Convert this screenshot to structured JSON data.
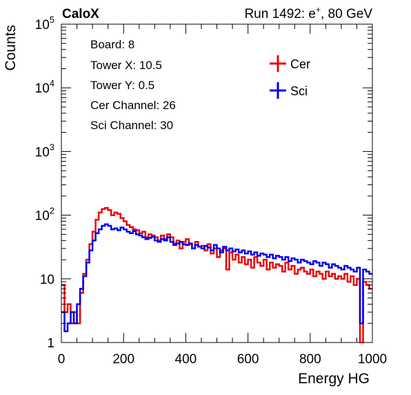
{
  "header": {
    "left_title": "CaloX",
    "right_title_prefix": "Run 1492: e",
    "right_title_sup": "+",
    "right_title_suffix": ", 80 GeV"
  },
  "info_lines": [
    "Board: 8",
    "Tower X: 10.5",
    "Tower Y: 0.5",
    "Cer Channel: 26",
    "Sci Channel: 30"
  ],
  "chart_data": {
    "type": "line",
    "subtype": "step-histogram",
    "xlabel": "Energy HG",
    "ylabel": "Counts",
    "xlim": [
      0,
      1000
    ],
    "ylim": [
      1,
      100000
    ],
    "yscale": "log",
    "x_ticks": [
      0,
      200,
      400,
      600,
      800,
      1000
    ],
    "x_tick_labels": [
      "0",
      "200",
      "400",
      "600",
      "800",
      "1000"
    ],
    "y_ticks": [
      1,
      10,
      100,
      1000,
      10000,
      100000
    ],
    "y_tick_labels": [
      {
        "base": "1",
        "exp": ""
      },
      {
        "base": "10",
        "exp": ""
      },
      {
        "base": "10",
        "exp": "2"
      },
      {
        "base": "10",
        "exp": "3"
      },
      {
        "base": "10",
        "exp": "4"
      },
      {
        "base": "10",
        "exp": "5"
      }
    ],
    "legend_position": "top-right",
    "series": [
      {
        "name": "Cer",
        "color": "#ee0000",
        "x": [
          0,
          10,
          20,
          30,
          40,
          50,
          60,
          70,
          80,
          90,
          100,
          110,
          120,
          130,
          140,
          150,
          160,
          170,
          180,
          190,
          200,
          210,
          220,
          230,
          240,
          250,
          260,
          270,
          280,
          290,
          300,
          310,
          320,
          330,
          340,
          350,
          360,
          370,
          380,
          390,
          400,
          410,
          420,
          430,
          440,
          450,
          460,
          470,
          480,
          490,
          500,
          510,
          520,
          530,
          540,
          550,
          560,
          570,
          580,
          590,
          600,
          610,
          620,
          630,
          640,
          650,
          660,
          670,
          680,
          690,
          700,
          710,
          720,
          730,
          740,
          750,
          760,
          770,
          780,
          790,
          800,
          810,
          820,
          830,
          840,
          850,
          860,
          870,
          880,
          890,
          900,
          910,
          920,
          930,
          940,
          950,
          960,
          970,
          980,
          990
        ],
        "values": [
          8,
          3,
          4,
          2,
          3,
          2,
          6,
          12,
          20,
          35,
          55,
          85,
          110,
          125,
          130,
          120,
          100,
          110,
          105,
          90,
          80,
          70,
          65,
          60,
          58,
          52,
          55,
          45,
          50,
          48,
          45,
          40,
          48,
          42,
          50,
          45,
          36,
          40,
          30,
          38,
          42,
          35,
          30,
          38,
          32,
          33,
          28,
          35,
          25,
          30,
          22,
          28,
          30,
          14,
          26,
          20,
          24,
          18,
          22,
          17,
          20,
          15,
          22,
          18,
          16,
          20,
          14,
          18,
          15,
          17,
          16,
          13,
          18,
          14,
          16,
          12,
          14,
          15,
          13,
          12,
          14,
          11,
          13,
          12,
          10,
          13,
          11,
          12,
          10,
          11,
          10,
          12,
          9,
          11,
          8,
          10,
          1,
          9,
          8,
          7
        ]
      },
      {
        "name": "Sci",
        "color": "#0000ee",
        "x": [
          0,
          10,
          20,
          30,
          40,
          50,
          60,
          70,
          80,
          90,
          100,
          110,
          120,
          130,
          140,
          150,
          160,
          170,
          180,
          190,
          200,
          210,
          220,
          230,
          240,
          250,
          260,
          270,
          280,
          290,
          300,
          310,
          320,
          330,
          340,
          350,
          360,
          370,
          380,
          390,
          400,
          410,
          420,
          430,
          440,
          450,
          460,
          470,
          480,
          490,
          500,
          510,
          520,
          530,
          540,
          550,
          560,
          570,
          580,
          590,
          600,
          610,
          620,
          630,
          640,
          650,
          660,
          670,
          680,
          690,
          700,
          710,
          720,
          730,
          740,
          750,
          760,
          770,
          780,
          790,
          800,
          810,
          820,
          830,
          840,
          850,
          860,
          870,
          880,
          890,
          900,
          910,
          920,
          930,
          940,
          950,
          960,
          970,
          980,
          990
        ],
        "values": [
          3,
          1.5,
          2,
          3,
          2,
          4,
          7,
          11,
          18,
          28,
          40,
          52,
          60,
          68,
          72,
          68,
          60,
          62,
          58,
          64,
          60,
          55,
          52,
          56,
          50,
          48,
          45,
          42,
          44,
          46,
          40,
          38,
          42,
          40,
          45,
          38,
          34,
          36,
          38,
          35,
          34,
          36,
          30,
          34,
          32,
          30,
          33,
          31,
          28,
          34,
          30,
          26,
          32,
          28,
          30,
          27,
          29,
          26,
          28,
          25,
          27,
          24,
          26,
          23,
          25,
          24,
          22,
          24,
          21,
          23,
          22,
          20,
          22,
          19,
          21,
          20,
          18,
          20,
          19,
          18,
          17,
          19,
          18,
          16,
          18,
          17,
          15,
          17,
          16,
          15,
          14,
          16,
          15,
          14,
          13,
          15,
          2,
          14,
          13,
          12
        ]
      }
    ]
  }
}
